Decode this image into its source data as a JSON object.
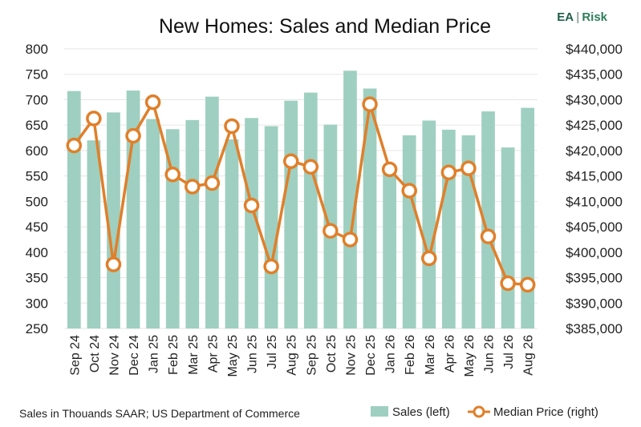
{
  "brand": {
    "ea": "EA",
    "sep": "|",
    "risk": "Risk",
    "ea_color": "#1f5e47",
    "sep_color": "#9aa7a0",
    "risk_color": "#2e7d5b"
  },
  "footnote": "Sales in Thouands SAAR; US Department of Commerce",
  "legend": {
    "bars": "Sales (left)",
    "line": "Median Price (right)"
  },
  "colors": {
    "bar": "#9fcfc0",
    "line": "#e07f2a",
    "marker_fill": "#ffffff",
    "grid": "#e6e6e6"
  },
  "chart_data": {
    "type": "bar",
    "title": "New Homes: Sales and Median Price",
    "categories": [
      "Sep 24",
      "Oct 24",
      "Nov 24",
      "Dec 24",
      "Jan 25",
      "Feb 25",
      "Mar 25",
      "Apr 25",
      "May 25",
      "Jun 25",
      "Jul 25",
      "Aug 25",
      "Sep 25",
      "Oct 25",
      "Nov 25",
      "Dec 25",
      "Jan 26",
      "Feb 26",
      "Mar 26",
      "Apr 26",
      "May 26",
      "Jun 26",
      "Jul 26",
      "Aug 26"
    ],
    "ylim_left": [
      250,
      800
    ],
    "yticks_left": [
      "250",
      "300",
      "350",
      "400",
      "450",
      "500",
      "550",
      "600",
      "650",
      "700",
      "750",
      "800"
    ],
    "ylim_right": [
      385000,
      440000
    ],
    "yticks_right": [
      "$385,000",
      "$390,000",
      "$395,000",
      "$400,000",
      "$405,000",
      "$410,000",
      "$415,000",
      "$420,000",
      "$425,000",
      "$430,000",
      "$435,000",
      "$440,000"
    ],
    "grid": true,
    "legend_position": "bottom-right",
    "series": [
      {
        "name": "Sales (left)",
        "type": "bar",
        "axis": "left",
        "values": [
          717,
          620,
          675,
          718,
          662,
          642,
          660,
          706,
          622,
          664,
          648,
          698,
          714,
          651,
          757,
          722,
          565,
          630,
          659,
          641,
          630,
          677,
          606,
          684
        ]
      },
      {
        "name": "Median Price (right)",
        "type": "line",
        "axis": "right",
        "values": [
          421000,
          426300,
          397600,
          422900,
          429500,
          415300,
          412900,
          413600,
          424800,
          409200,
          397200,
          417900,
          416800,
          404200,
          402500,
          429100,
          416300,
          412100,
          398800,
          415700,
          416500,
          403100,
          393900,
          393600
        ]
      }
    ]
  }
}
